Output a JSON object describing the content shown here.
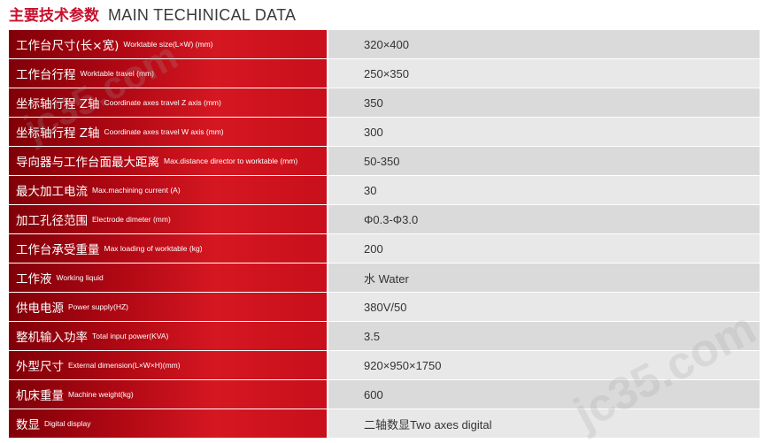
{
  "title": {
    "cn": "主要技术参数",
    "en": "MAIN TECHINICAL DATA"
  },
  "rows": [
    {
      "cn": "工作台尺寸(长×宽)",
      "en": "Worktable size(L×W)  (mm)",
      "value": "320×400"
    },
    {
      "cn": "工作台行程",
      "en": "Worktable travel (mm)",
      "value": "250×350"
    },
    {
      "cn": "坐标轴行程 Z轴",
      "en": "Coordinate axes travel Z axis (mm)",
      "value": "350"
    },
    {
      "cn": "坐标轴行程 Z轴",
      "en": "Coordinate axes travel W axis (mm)",
      "value": "300"
    },
    {
      "cn": "导向器与工作台面最大距离",
      "en": "Max.distance director to worktable (mm)",
      "value": "50-350"
    },
    {
      "cn": "最大加工电流",
      "en": "Max.machining current (A)",
      "value": "30"
    },
    {
      "cn": "加工孔径范围",
      "en": "Electrode dimeter (mm)",
      "value": "Φ0.3-Φ3.0"
    },
    {
      "cn": "工作台承受重量",
      "en": "Max loading of worktable (kg)",
      "value": "200"
    },
    {
      "cn": "工作液",
      "en": "Working liquid",
      "value": "水 Water"
    },
    {
      "cn": "供电电源",
      "en": "Power supply(HZ)",
      "value": "380V/50"
    },
    {
      "cn": "整机输入功率",
      "en": "Total input power(KVA)",
      "value": "3.5"
    },
    {
      "cn": "外型尺寸",
      "en": "External dimension(L×W×H)(mm)",
      "value": "920×950×1750"
    },
    {
      "cn": "机床重量",
      "en": "Machine weight(kg)",
      "value": "600"
    },
    {
      "cn": "数显",
      "en": "Digital display",
      "value": "二轴数显Two axes digital"
    }
  ],
  "watermark": {
    "text": "jc35.com"
  }
}
